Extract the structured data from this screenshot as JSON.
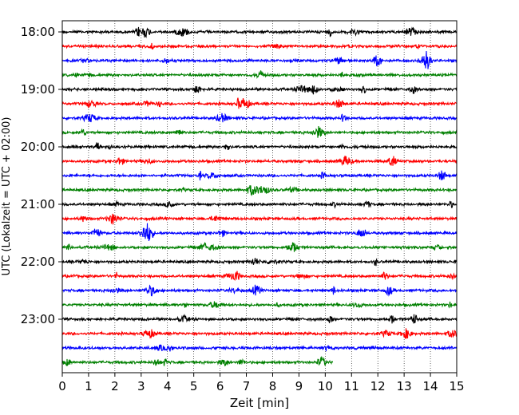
{
  "chart_data": {
    "type": "line",
    "title": "",
    "xlabel": "Zeit  [min]",
    "ylabel": "UTC (Lokalzeit = UTC + 02:00)",
    "xlim": [
      0,
      15
    ],
    "x_ticks": [
      "0",
      "1",
      "2",
      "3",
      "4",
      "5",
      "6",
      "7",
      "8",
      "9",
      "10",
      "11",
      "12",
      "13",
      "14",
      "15"
    ],
    "y_ticks": [
      "18:00",
      "19:00",
      "20:00",
      "21:00",
      "22:00",
      "23:00"
    ],
    "vertical_grid": "dotted at each minute",
    "row_interval_minutes": 15,
    "row_colors": [
      "#000000",
      "#ff0000",
      "#0000ff",
      "#008000"
    ],
    "rows": [
      {
        "start": "18:00",
        "end_min": 15,
        "color": "#000000"
      },
      {
        "start": "18:15",
        "end_min": 15,
        "color": "#ff0000"
      },
      {
        "start": "18:30",
        "end_min": 15,
        "color": "#0000ff"
      },
      {
        "start": "18:45",
        "end_min": 15,
        "color": "#008000"
      },
      {
        "start": "19:00",
        "end_min": 15,
        "color": "#000000"
      },
      {
        "start": "19:15",
        "end_min": 15,
        "color": "#ff0000"
      },
      {
        "start": "19:30",
        "end_min": 15,
        "color": "#0000ff"
      },
      {
        "start": "19:45",
        "end_min": 15,
        "color": "#008000"
      },
      {
        "start": "20:00",
        "end_min": 15,
        "color": "#000000"
      },
      {
        "start": "20:15",
        "end_min": 15,
        "color": "#ff0000"
      },
      {
        "start": "20:30",
        "end_min": 15,
        "color": "#0000ff"
      },
      {
        "start": "20:45",
        "end_min": 15,
        "color": "#008000"
      },
      {
        "start": "21:00",
        "end_min": 15,
        "color": "#000000"
      },
      {
        "start": "21:15",
        "end_min": 15,
        "color": "#ff0000"
      },
      {
        "start": "21:30",
        "end_min": 15,
        "color": "#0000ff"
      },
      {
        "start": "21:45",
        "end_min": 15,
        "color": "#008000"
      },
      {
        "start": "22:00",
        "end_min": 15,
        "color": "#000000"
      },
      {
        "start": "22:15",
        "end_min": 15,
        "color": "#ff0000"
      },
      {
        "start": "22:30",
        "end_min": 15,
        "color": "#0000ff"
      },
      {
        "start": "22:45",
        "end_min": 15,
        "color": "#008000"
      },
      {
        "start": "23:00",
        "end_min": 15,
        "color": "#000000"
      },
      {
        "start": "23:15",
        "end_min": 15,
        "color": "#ff0000"
      },
      {
        "start": "23:30",
        "end_min": 15,
        "color": "#0000ff"
      },
      {
        "start": "23:45",
        "end_min": 10.3,
        "color": "#008000"
      }
    ]
  }
}
